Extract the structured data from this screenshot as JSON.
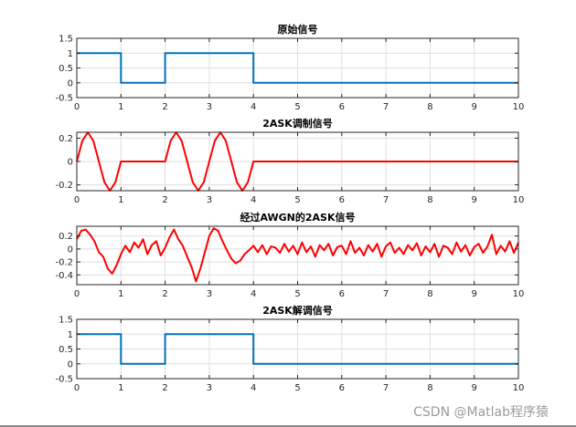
{
  "watermark": "CSDN @Matlab程序猿",
  "chart_data": [
    {
      "type": "line",
      "title": "原始信号",
      "xlabel": "",
      "ylabel": "",
      "xlim": [
        0,
        10
      ],
      "ylim": [
        -0.5,
        1.5
      ],
      "xticks": [
        0,
        1,
        2,
        3,
        4,
        5,
        6,
        7,
        8,
        9,
        10
      ],
      "yticks": [
        -0.5,
        0,
        0.5,
        1,
        1.5
      ],
      "ytick_labels": [
        "-0.5",
        "0",
        "0.5",
        "1",
        "1.5"
      ],
      "grid": true,
      "color": "#0072BD",
      "series": [
        {
          "x": [
            0,
            1,
            1,
            2,
            2,
            4,
            4,
            10
          ],
          "y": [
            1,
            1,
            0,
            0,
            1,
            1,
            0,
            0
          ]
        }
      ]
    },
    {
      "type": "line",
      "title": "2ASK调制信号",
      "xlabel": "",
      "ylabel": "",
      "xlim": [
        0,
        10
      ],
      "ylim": [
        -0.25,
        0.25
      ],
      "xticks": [
        0,
        1,
        2,
        3,
        4,
        5,
        6,
        7,
        8,
        9,
        10
      ],
      "yticks": [
        -0.2,
        0,
        0.2
      ],
      "ytick_labels": [
        "-0.2",
        "0",
        "0.2"
      ],
      "grid": true,
      "color": "#FF0000",
      "series": [
        {
          "x": [
            0,
            0.125,
            0.25,
            0.375,
            0.5,
            0.625,
            0.75,
            0.875,
            1,
            1.5,
            2,
            2.125,
            2.25,
            2.375,
            2.5,
            2.625,
            2.75,
            2.875,
            3,
            3.125,
            3.25,
            3.375,
            3.5,
            3.625,
            3.75,
            3.875,
            4,
            10
          ],
          "y": [
            0,
            0.177,
            0.25,
            0.177,
            0,
            -0.177,
            -0.25,
            -0.177,
            0,
            0,
            0,
            0.177,
            0.25,
            0.177,
            0,
            -0.177,
            -0.25,
            -0.177,
            0,
            0.177,
            0.25,
            0.177,
            0,
            -0.177,
            -0.25,
            -0.177,
            0,
            0
          ]
        }
      ]
    },
    {
      "type": "line",
      "title": "经过AWGN的2ASK信号",
      "xlabel": "",
      "ylabel": "",
      "xlim": [
        0,
        10
      ],
      "ylim": [
        -0.55,
        0.35
      ],
      "xticks": [
        0,
        1,
        2,
        3,
        4,
        5,
        6,
        7,
        8,
        9,
        10
      ],
      "yticks": [
        -0.4,
        -0.2,
        0,
        0.2
      ],
      "ytick_labels": [
        "-0.4",
        "-0.2",
        "0",
        "0.2"
      ],
      "grid": true,
      "color": "#FF0000",
      "series": [
        {
          "x": [
            0,
            0.1,
            0.2,
            0.3,
            0.4,
            0.5,
            0.6,
            0.7,
            0.8,
            0.9,
            1,
            1.1,
            1.2,
            1.3,
            1.4,
            1.5,
            1.6,
            1.7,
            1.8,
            1.9,
            2,
            2.1,
            2.2,
            2.3,
            2.4,
            2.5,
            2.6,
            2.7,
            2.8,
            2.9,
            3,
            3.1,
            3.2,
            3.3,
            3.4,
            3.5,
            3.6,
            3.7,
            3.8,
            3.9,
            4,
            4.1,
            4.2,
            4.3,
            4.4,
            4.5,
            4.6,
            4.7,
            4.8,
            4.9,
            5,
            5.1,
            5.2,
            5.3,
            5.4,
            5.5,
            5.6,
            5.7,
            5.8,
            5.9,
            6,
            6.1,
            6.2,
            6.3,
            6.4,
            6.5,
            6.6,
            6.7,
            6.8,
            6.9,
            7,
            7.1,
            7.2,
            7.3,
            7.4,
            7.5,
            7.6,
            7.7,
            7.8,
            7.9,
            8,
            8.1,
            8.2,
            8.3,
            8.4,
            8.5,
            8.6,
            8.7,
            8.8,
            8.9,
            9,
            9.1,
            9.2,
            9.3,
            9.4,
            9.5,
            9.6,
            9.7,
            9.8,
            9.9,
            10
          ],
          "y": [
            0.15,
            0.28,
            0.3,
            0.22,
            0.12,
            -0.05,
            -0.12,
            -0.3,
            -0.38,
            -0.25,
            -0.08,
            0.05,
            -0.05,
            0.1,
            0.02,
            0.15,
            -0.08,
            0.06,
            0.12,
            -0.1,
            0.02,
            0.18,
            0.3,
            0.15,
            0.05,
            -0.12,
            -0.28,
            -0.5,
            -0.3,
            -0.05,
            0.2,
            0.32,
            0.28,
            0.12,
            -0.02,
            -0.15,
            -0.22,
            -0.18,
            -0.08,
            -0.02,
            0.05,
            -0.05,
            0.06,
            -0.08,
            0.04,
            0.02,
            -0.06,
            0.08,
            -0.04,
            0.05,
            -0.08,
            0.1,
            -0.05,
            0.04,
            -0.12,
            0.06,
            -0.02,
            0.08,
            -0.1,
            0.03,
            0.05,
            -0.08,
            0.12,
            -0.06,
            0.02,
            -0.1,
            0.06,
            -0.04,
            0.08,
            -0.12,
            0.04,
            0.1,
            -0.06,
            0.02,
            -0.08,
            0.06,
            -0.02,
            0.09,
            -0.1,
            0.04,
            -0.05,
            0.08,
            -0.12,
            0.05,
            0.02,
            -0.08,
            0.1,
            -0.04,
            0.06,
            -0.1,
            0.03,
            0.08,
            -0.06,
            0.04,
            0.22,
            -0.08,
            0.05,
            -0.04,
            0.12,
            -0.06,
            0.1
          ]
        }
      ]
    },
    {
      "type": "line",
      "title": "2ASK解调信号",
      "xlabel": "",
      "ylabel": "",
      "xlim": [
        0,
        10
      ],
      "ylim": [
        -0.5,
        1.5
      ],
      "xticks": [
        0,
        1,
        2,
        3,
        4,
        5,
        6,
        7,
        8,
        9,
        10
      ],
      "yticks": [
        -0.5,
        0,
        0.5,
        1,
        1.5
      ],
      "ytick_labels": [
        "-0.5",
        "0",
        "0.5",
        "1",
        "1.5"
      ],
      "grid": true,
      "color": "#0072BD",
      "series": [
        {
          "x": [
            0,
            1,
            1,
            2,
            2,
            4,
            4,
            10
          ],
          "y": [
            1,
            1,
            0,
            0,
            1,
            1,
            0,
            0
          ]
        }
      ]
    }
  ]
}
